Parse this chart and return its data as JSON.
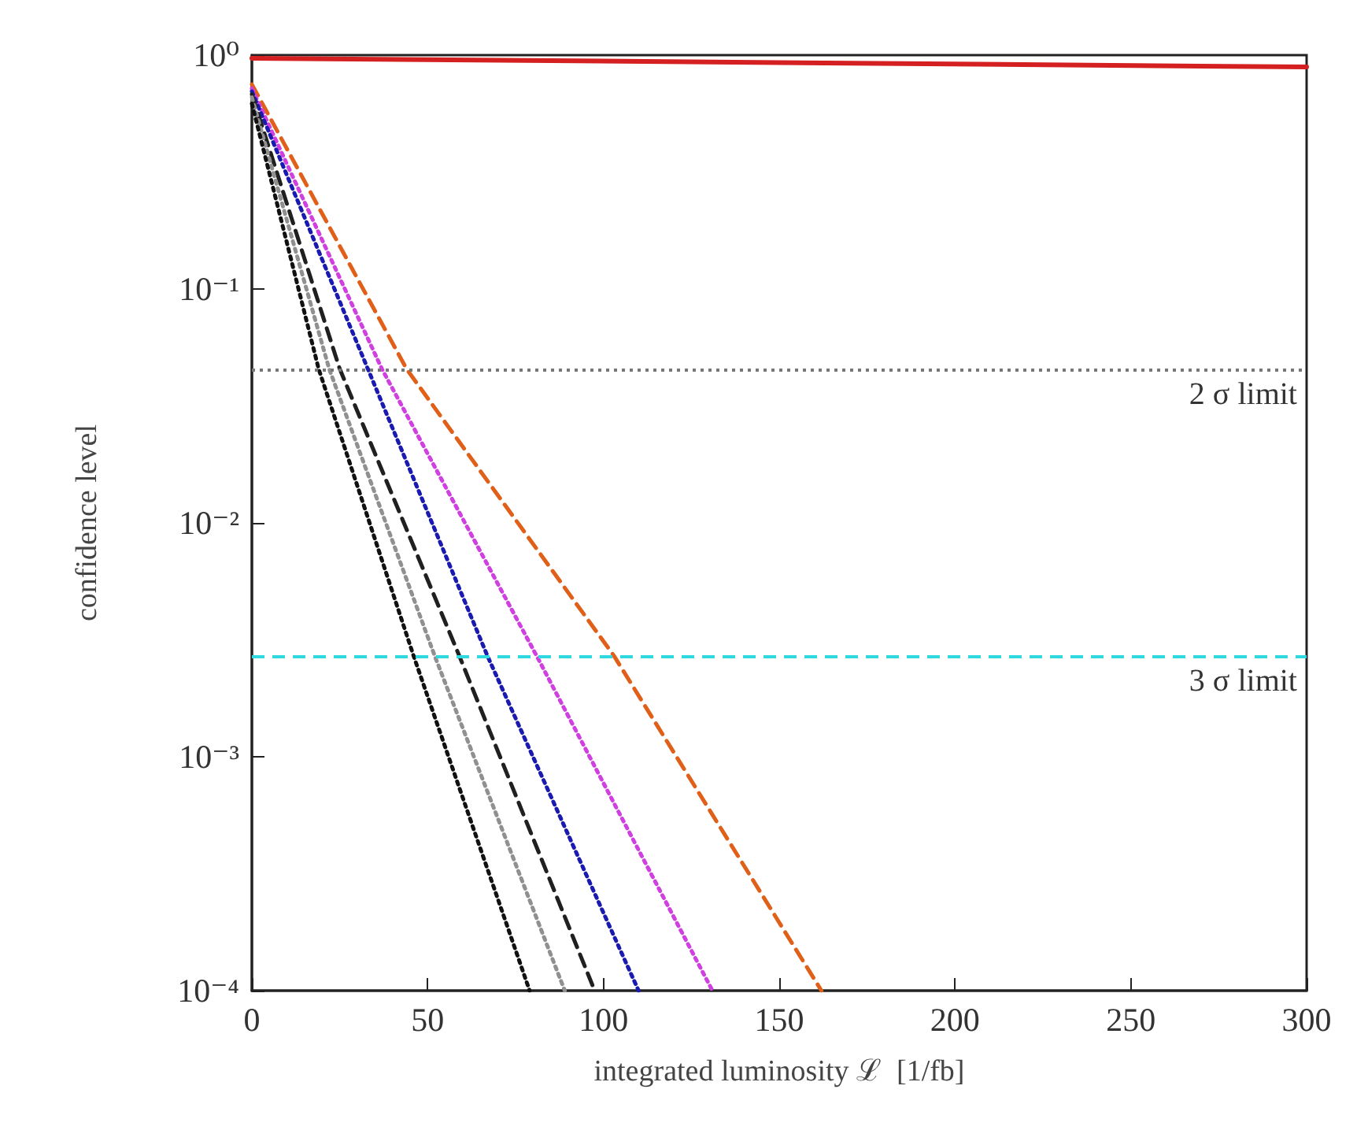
{
  "chart_data": {
    "type": "line",
    "xlabel": "integrated luminosity ℒ  [1/fb]",
    "ylabel": "confidence level",
    "log": "y",
    "grid": false,
    "marker": "none",
    "xlim": [
      0,
      300
    ],
    "xticks": [
      0,
      50,
      100,
      150,
      200,
      250,
      300
    ],
    "ylim": [
      0.0001,
      1
    ],
    "yticks": [
      {
        "value": 1,
        "label": "10⁰"
      },
      {
        "value": 0.1,
        "label": "10⁻¹"
      },
      {
        "value": 0.01,
        "label": "10⁻²"
      },
      {
        "value": 0.001,
        "label": "10⁻³"
      },
      {
        "value": 0.0001,
        "label": "10⁻⁴"
      }
    ],
    "series": [
      {
        "color": "#d42020",
        "line_style": "solid",
        "x": [
          0,
          300
        ],
        "values": [
          0.97,
          0.89
        ]
      },
      {
        "color": "#e0601a",
        "line_style": "dashed",
        "x": [
          0,
          44,
          103,
          162
        ],
        "values": [
          0.75,
          0.0455,
          0.0027,
          0.0001
        ]
      },
      {
        "color": "#d040e0",
        "line_style": "dotted",
        "x": [
          0,
          37,
          81,
          131
        ],
        "values": [
          0.72,
          0.0455,
          0.0027,
          0.0001
        ]
      },
      {
        "color": "#1a1ab0",
        "line_style": "dotted",
        "x": [
          0,
          33,
          67,
          110
        ],
        "values": [
          0.7,
          0.0455,
          0.0027,
          0.0001
        ]
      },
      {
        "color": "#202020",
        "line_style": "dashed",
        "x": [
          0,
          25,
          59,
          97.5
        ],
        "values": [
          0.68,
          0.0455,
          0.0027,
          0.0001
        ]
      },
      {
        "color": "#909090",
        "line_style": "dotted",
        "x": [
          0,
          22,
          52,
          89
        ],
        "values": [
          0.66,
          0.0455,
          0.0027,
          0.0001
        ]
      },
      {
        "color": "#111111",
        "line_style": "dotted",
        "x": [
          0,
          19,
          46,
          79
        ],
        "values": [
          0.62,
          0.0455,
          0.0027,
          0.0001
        ]
      }
    ],
    "ref_lines": [
      {
        "axis": "y",
        "value": 0.0455,
        "label": "2 σ limit",
        "color": "#777777",
        "line_style": "dotted"
      },
      {
        "axis": "y",
        "value": 0.0027,
        "label": "3 σ limit",
        "color": "#30d8e0",
        "line_style": "dashed"
      }
    ]
  }
}
